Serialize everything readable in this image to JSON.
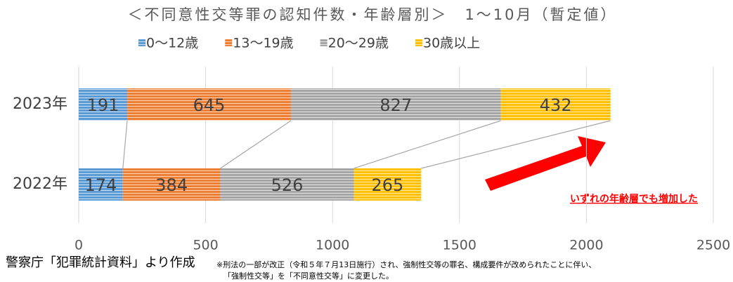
{
  "chart_data": {
    "type": "bar",
    "orientation": "horizontal",
    "stacked": true,
    "title": "＜不同意性交等罪の認知件数・年齢層別＞　1～10月（暫定値）",
    "categories": [
      "2023年",
      "2022年"
    ],
    "series": [
      {
        "name": "0～12歳",
        "color": "#5b9bd5",
        "values": [
          191,
          174
        ]
      },
      {
        "name": "13～19歳",
        "color": "#ed7d31",
        "values": [
          645,
          384
        ]
      },
      {
        "name": "20～29歳",
        "color": "#a5a5a5",
        "values": [
          827,
          526
        ]
      },
      {
        "name": "30歳以上",
        "color": "#ffc000",
        "values": [
          432,
          265
        ]
      }
    ],
    "xlim": [
      0,
      2500
    ],
    "xticks": [
      0,
      500,
      1000,
      1500,
      2000,
      2500
    ],
    "grid": true,
    "annotation": "いずれの年齢層でも増加した",
    "source": "警察庁「犯罪統計資料」より作成",
    "note": [
      "※刑法の一部が改正（令和５年７月13日施行）され、強制性交等の罪名、構成要件が改められたことに伴い、",
      "「強制性交等」を「不同意性交等」に変更した。"
    ]
  }
}
